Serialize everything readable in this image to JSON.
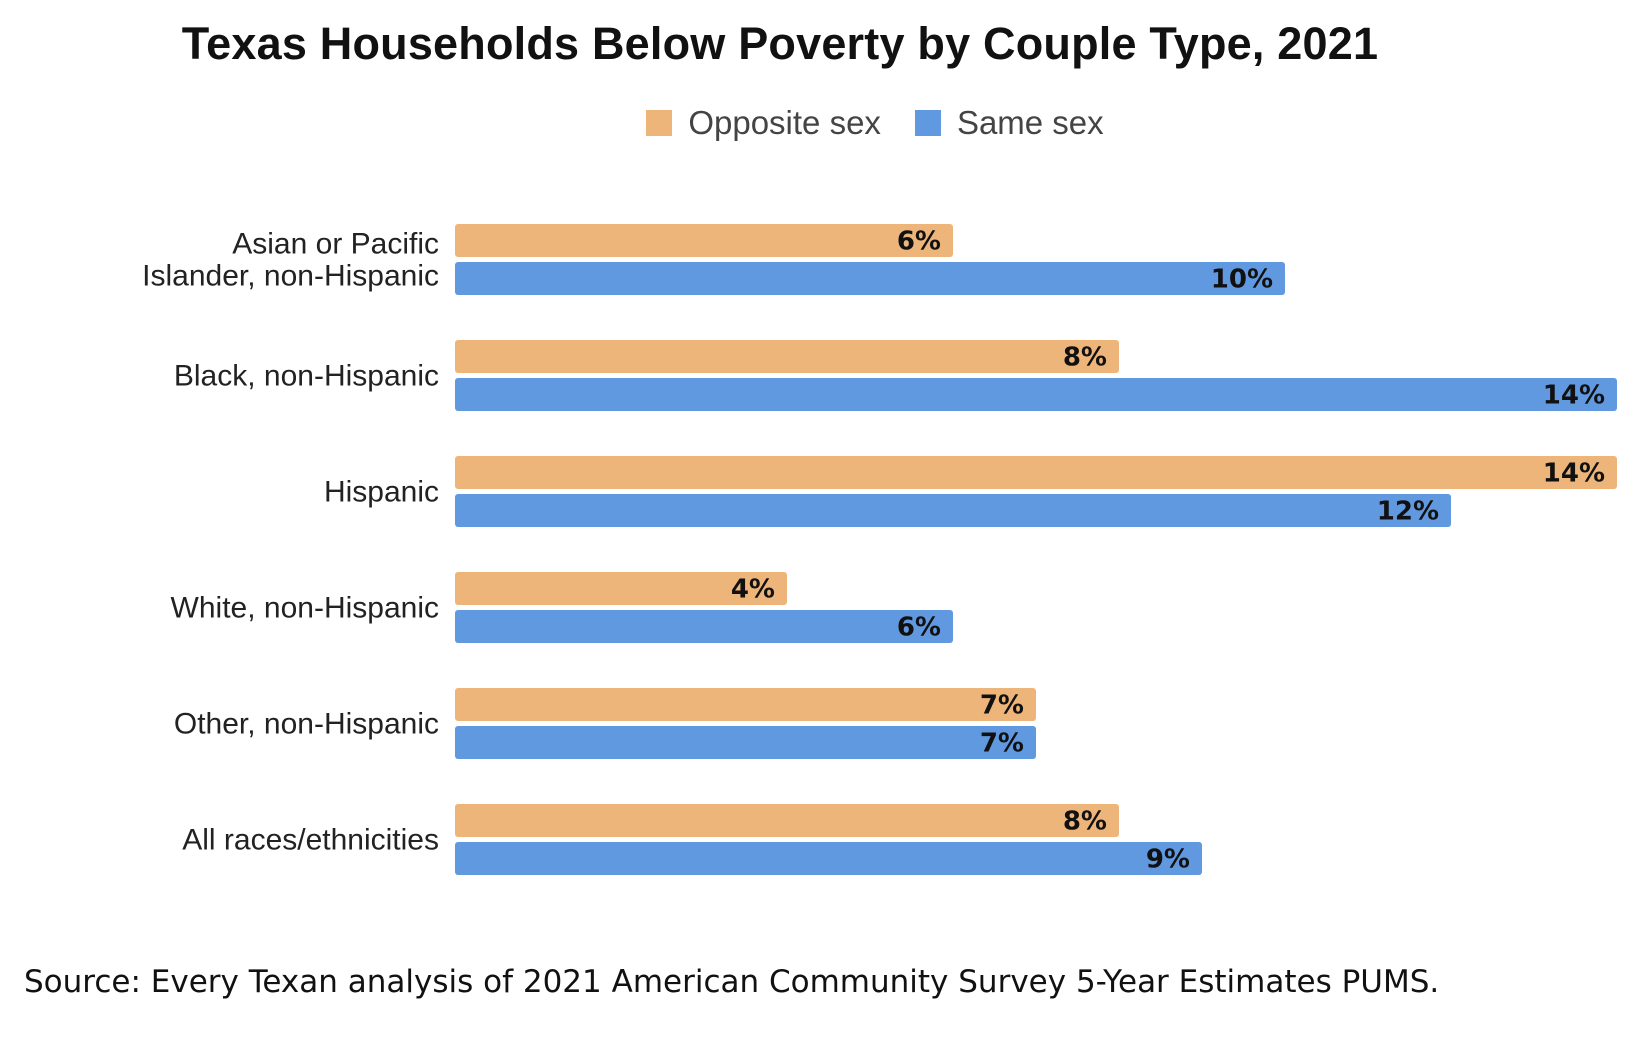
{
  "chart_data": {
    "type": "bar",
    "orientation": "horizontal",
    "title": "Texas Households Below Poverty by Couple Type, 2021",
    "categories": [
      [
        "Asian or Pacific",
        "Islander, non-Hispanic"
      ],
      [
        "Black, non-Hispanic"
      ],
      [
        "Hispanic"
      ],
      [
        "White, non-Hispanic"
      ],
      [
        "Other, non-Hispanic"
      ],
      [
        "All races/ethnicities"
      ]
    ],
    "series": [
      {
        "name": "Opposite sex",
        "color": "#EDB57A",
        "values": [
          6,
          8,
          14,
          4,
          7,
          8
        ],
        "labels": [
          "6%",
          "8%",
          "14%",
          "4%",
          "7%",
          "8%"
        ]
      },
      {
        "name": "Same sex",
        "color": "#6199E0",
        "values": [
          10,
          14,
          12,
          6,
          7,
          9
        ],
        "labels": [
          "10%",
          "14%",
          "12%",
          "6%",
          "7%",
          "9%"
        ]
      }
    ],
    "value_unit": "%",
    "xlabel": "",
    "ylabel": "",
    "grid": false,
    "legend_position": "top-center"
  },
  "legend": {
    "opposite_label": "Opposite sex",
    "same_label": "Same sex"
  },
  "source": "Source: Every Texan analysis of 2021 American Community Survey 5-Year Estimates PUMS."
}
